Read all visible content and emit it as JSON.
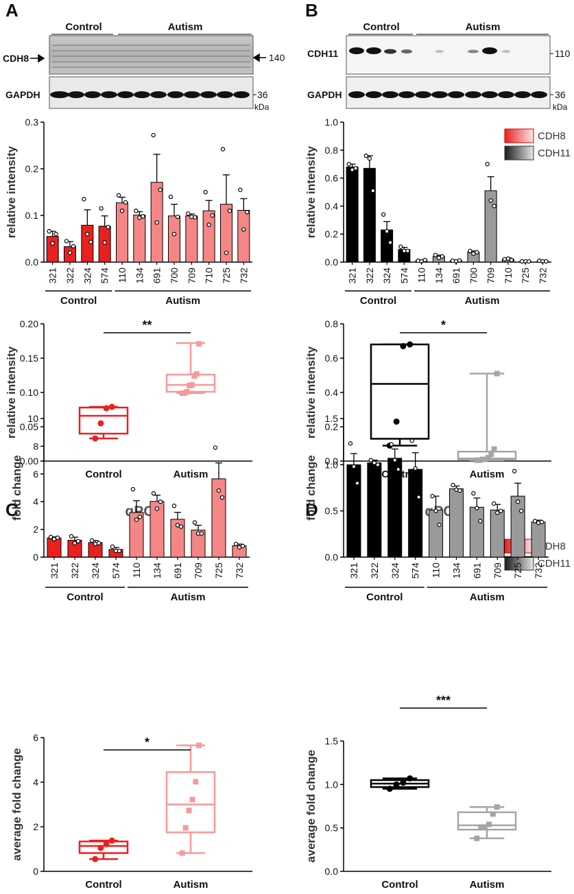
{
  "colors": {
    "cdh8_dark": "#e8211f",
    "cdh8_light": "#f58686",
    "cdh11_dark": "#000000",
    "cdh11_light": "#9a9a9a",
    "box_cdh8_ctrl": "#e8211f",
    "box_cdh8_aut": "#f59a9a",
    "box_cdh11_aut": "#a5a5a5"
  },
  "legend": {
    "cdh8": "CDH8",
    "cdh11": "CDH11"
  },
  "panels": {
    "A": {
      "letter": "A",
      "blot": {
        "group_control": "Control",
        "group_autism": "Autism",
        "protein": "CDH8",
        "control_label": "GAPDH",
        "mw_protein": "140",
        "mw_control": "36",
        "unit": "kDa"
      }
    },
    "B": {
      "letter": "B",
      "blot": {
        "group_control": "Control",
        "group_autism": "Autism",
        "protein": "CDH11",
        "control_label": "GAPDH",
        "mw_protein": "110",
        "mw_control": "36",
        "unit": "kDa"
      }
    },
    "C": {
      "letter": "C",
      "title": "qPCR"
    },
    "D": {
      "letter": "D",
      "title": "qPCR"
    }
  },
  "chart_data": [
    {
      "id": "A-bar",
      "type": "bar",
      "ylabel": "relative intensity",
      "ylim": [
        0,
        0.3
      ],
      "yticks": [
        "0.0",
        "0.1",
        "0.2",
        "0.3"
      ],
      "categories": [
        "321",
        "322",
        "324",
        "574",
        "110",
        "134",
        "691",
        "700",
        "709",
        "710",
        "725",
        "732"
      ],
      "groups": [
        "control",
        "control",
        "control",
        "control",
        "autism",
        "autism",
        "autism",
        "autism",
        "autism",
        "autism",
        "autism",
        "autism"
      ],
      "group_labels": {
        "control": "Control",
        "autism": "Autism"
      },
      "values": [
        0.055,
        0.033,
        0.079,
        0.077,
        0.127,
        0.101,
        0.171,
        0.099,
        0.099,
        0.11,
        0.124,
        0.111
      ],
      "errors": [
        0.011,
        0.011,
        0.033,
        0.022,
        0.012,
        0.007,
        0.06,
        0.025,
        0.004,
        0.022,
        0.063,
        0.025
      ],
      "points": [
        [
          0.066,
          0.04,
          0.06
        ],
        [
          0.045,
          0.02,
          0.034
        ],
        [
          0.135,
          0.06,
          0.043
        ],
        [
          0.115,
          0.042,
          0.075
        ],
        [
          0.143,
          0.11,
          0.128
        ],
        [
          0.11,
          0.095,
          0.098
        ],
        [
          0.272,
          0.085,
          0.155
        ],
        [
          0.14,
          0.06,
          0.097
        ],
        [
          0.104,
          0.097,
          0.096
        ],
        [
          0.15,
          0.08,
          0.1
        ],
        [
          0.242,
          0.02,
          0.11
        ],
        [
          0.155,
          0.07,
          0.107
        ]
      ]
    },
    {
      "id": "A-box",
      "type": "box",
      "ylabel": "relative intensity",
      "ylim": [
        0,
        0.2
      ],
      "yticks": [
        "0.00",
        "0.05",
        "0.10",
        "0.15",
        "0.20"
      ],
      "categories": [
        "Control",
        "Autism"
      ],
      "boxes": [
        {
          "min": 0.033,
          "q1": 0.04,
          "median": 0.066,
          "q3": 0.078,
          "max": 0.079,
          "points": [
            0.033,
            0.055,
            0.077,
            0.079
          ]
        },
        {
          "min": 0.099,
          "q1": 0.101,
          "median": 0.111,
          "q3": 0.126,
          "max": 0.172,
          "points": [
            0.099,
            0.099,
            0.101,
            0.11,
            0.111,
            0.124,
            0.127,
            0.171
          ]
        }
      ],
      "significance": "**"
    },
    {
      "id": "B-bar",
      "type": "bar",
      "ylabel": "relative intensity",
      "ylim": [
        0,
        1.0
      ],
      "yticks": [
        "0.0",
        "0.2",
        "0.4",
        "0.6",
        "0.8",
        "1.0"
      ],
      "categories": [
        "321",
        "322",
        "324",
        "574",
        "110",
        "134",
        "691",
        "700",
        "709",
        "710",
        "725",
        "732"
      ],
      "groups": [
        "control",
        "control",
        "control",
        "control",
        "autism",
        "autism",
        "autism",
        "autism",
        "autism",
        "autism",
        "autism",
        "autism"
      ],
      "group_labels": {
        "control": "Control",
        "autism": "Autism"
      },
      "values": [
        0.68,
        0.67,
        0.23,
        0.09,
        0.01,
        0.04,
        0.01,
        0.07,
        0.51,
        0.02,
        0.005,
        0.005
      ],
      "errors": [
        0.02,
        0.09,
        0.06,
        0.015,
        0.005,
        0.01,
        0.005,
        0.01,
        0.1,
        0.01,
        0.003,
        0.003
      ],
      "points": [
        [
          0.7,
          0.66,
          0.67
        ],
        [
          0.76,
          0.74,
          0.51
        ],
        [
          0.34,
          0.22,
          0.14
        ],
        [
          0.11,
          0.08,
          0.08
        ],
        [
          0.01,
          0.005,
          0.015
        ],
        [
          0.05,
          0.03,
          0.04
        ],
        [
          0.01,
          0.005,
          0.012
        ],
        [
          0.08,
          0.06,
          0.07
        ],
        [
          0.7,
          0.44,
          0.4
        ],
        [
          0.02,
          0.025,
          0.015
        ],
        [
          0.005,
          0.005,
          0.005
        ],
        [
          0.01,
          0.005,
          0.005
        ]
      ]
    },
    {
      "id": "B-box",
      "type": "box",
      "ylabel": "relative intensity",
      "ylim": [
        0,
        0.8
      ],
      "yticks": [
        "0.0",
        "0.2",
        "0.4",
        "0.6",
        "0.8"
      ],
      "categories": [
        "Control",
        "Autism"
      ],
      "boxes": [
        {
          "min": 0.09,
          "q1": 0.13,
          "median": 0.45,
          "q3": 0.68,
          "max": 0.68,
          "points": [
            0.09,
            0.23,
            0.67,
            0.68
          ]
        },
        {
          "min": 0.005,
          "q1": 0.007,
          "median": 0.015,
          "q3": 0.055,
          "max": 0.51,
          "points": [
            0.005,
            0.005,
            0.01,
            0.01,
            0.02,
            0.04,
            0.07,
            0.51
          ]
        }
      ],
      "significance": "*"
    },
    {
      "id": "C-bar",
      "type": "bar",
      "ylabel": "fold change",
      "ylim": [
        0,
        10
      ],
      "yticks": [
        "0",
        "2",
        "4",
        "6",
        "8",
        "10"
      ],
      "categories": [
        "321",
        "322",
        "324",
        "574",
        "110",
        "134",
        "691",
        "709",
        "725",
        "732"
      ],
      "groups": [
        "control",
        "control",
        "control",
        "control",
        "autism",
        "autism",
        "autism",
        "autism",
        "autism",
        "autism"
      ],
      "group_labels": {
        "control": "Control",
        "autism": "Autism"
      },
      "values": [
        1.38,
        1.22,
        1.05,
        0.55,
        3.22,
        4.02,
        2.73,
        1.95,
        5.65,
        0.82
      ],
      "errors": [
        0.08,
        0.22,
        0.15,
        0.15,
        0.85,
        0.45,
        0.5,
        0.35,
        1.15,
        0.12
      ],
      "points": [
        [
          1.45,
          1.3,
          1.4
        ],
        [
          1.5,
          1.0,
          1.15
        ],
        [
          1.2,
          0.95,
          1.0
        ],
        [
          0.75,
          0.45,
          0.45
        ],
        [
          4.9,
          2.7,
          2.9
        ],
        [
          4.6,
          3.5,
          4.0
        ],
        [
          3.7,
          2.3,
          2.2
        ],
        [
          2.5,
          1.7,
          1.7
        ],
        [
          7.9,
          4.8,
          4.3
        ],
        [
          0.95,
          0.7,
          0.8
        ]
      ]
    },
    {
      "id": "C-box",
      "type": "box",
      "ylabel": "average fold change",
      "ylim": [
        0,
        6
      ],
      "yticks": [
        "0",
        "2",
        "4",
        "6"
      ],
      "categories": [
        "Control",
        "Autism"
      ],
      "boxes": [
        {
          "min": 0.55,
          "q1": 0.82,
          "median": 1.14,
          "q3": 1.34,
          "max": 1.38,
          "points": [
            0.55,
            1.05,
            1.22,
            1.38
          ]
        },
        {
          "min": 0.82,
          "q1": 1.75,
          "median": 3.0,
          "q3": 4.45,
          "max": 5.65,
          "points": [
            0.82,
            1.95,
            2.73,
            3.22,
            4.02,
            5.65
          ]
        }
      ],
      "significance": "*"
    },
    {
      "id": "D-bar",
      "type": "bar",
      "ylabel": "fold change",
      "ylim": [
        0,
        1.5
      ],
      "yticks": [
        "0.0",
        "0.5",
        "1.0",
        "1.5"
      ],
      "categories": [
        "321",
        "322",
        "324",
        "574",
        "110",
        "134",
        "691",
        "709",
        "725",
        "732"
      ],
      "groups": [
        "control",
        "control",
        "control",
        "control",
        "autism",
        "autism",
        "autism",
        "autism",
        "autism",
        "autism"
      ],
      "group_labels": {
        "control": "Control",
        "autism": "Autism"
      },
      "values": [
        1.0,
        1.02,
        1.07,
        0.95,
        0.51,
        0.74,
        0.54,
        0.51,
        0.66,
        0.38
      ],
      "errors": [
        0.12,
        0.03,
        0.1,
        0.18,
        0.15,
        0.03,
        0.1,
        0.06,
        0.14,
        0.02
      ],
      "points": [
        [
          1.23,
          0.98,
          0.8
        ],
        [
          1.05,
          1.02,
          1.0
        ],
        [
          1.22,
          1.05,
          0.95
        ],
        [
          1.26,
          0.96,
          0.65
        ],
        [
          0.66,
          0.5,
          0.35
        ],
        [
          0.78,
          0.73,
          0.72
        ],
        [
          0.69,
          0.53,
          0.39
        ],
        [
          0.58,
          0.48,
          0.5
        ],
        [
          0.93,
          0.6,
          0.5
        ],
        [
          0.39,
          0.37,
          0.38
        ]
      ]
    },
    {
      "id": "D-box",
      "type": "box",
      "ylabel": "average fold change",
      "ylim": [
        0,
        1.5
      ],
      "yticks": [
        "0.0",
        "0.5",
        "1.0",
        "1.5"
      ],
      "categories": [
        "Control",
        "Autism"
      ],
      "boxes": [
        {
          "min": 0.95,
          "q1": 0.97,
          "median": 1.01,
          "q3": 1.05,
          "max": 1.07,
          "points": [
            0.95,
            1.0,
            1.02,
            1.07
          ]
        },
        {
          "min": 0.38,
          "q1": 0.48,
          "median": 0.53,
          "q3": 0.68,
          "max": 0.74,
          "points": [
            0.38,
            0.51,
            0.51,
            0.54,
            0.66,
            0.74
          ]
        }
      ],
      "significance": "***"
    }
  ]
}
